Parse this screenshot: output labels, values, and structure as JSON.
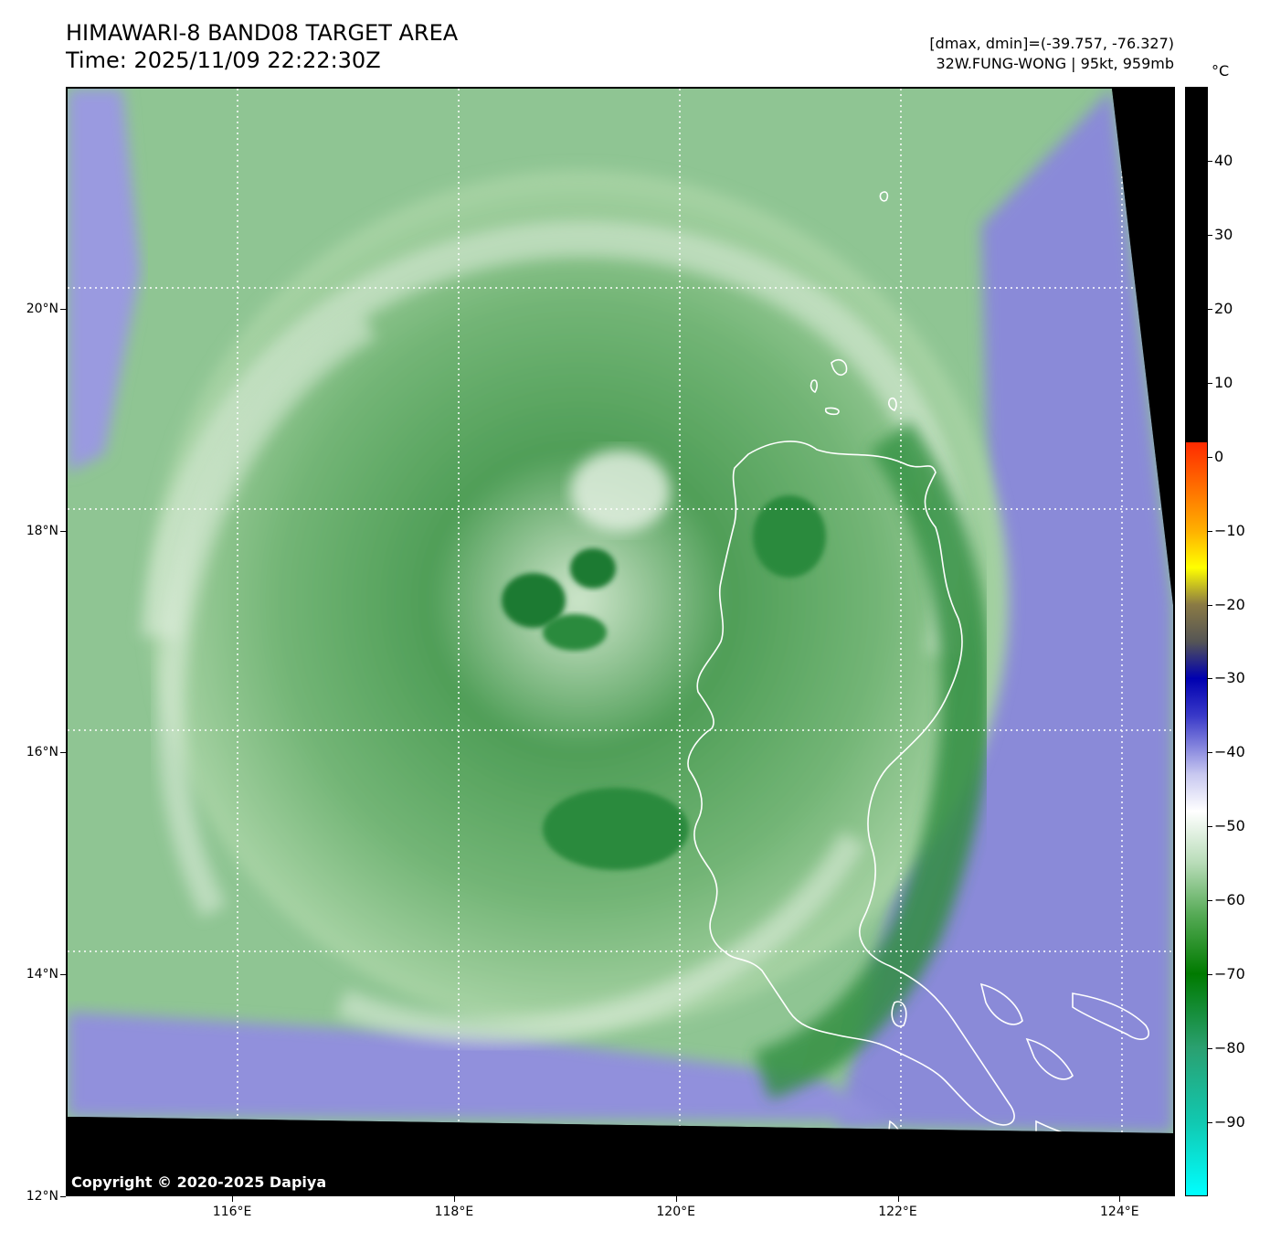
{
  "header": {
    "title": "HIMAWARI-8 BAND08 TARGET AREA",
    "time": "Time: 2025/11/09 22:22:30Z",
    "range": "[dmax, dmin]=(-39.757, -76.327)",
    "storm": "32W.FUNG-WONG | 95kt, 959mb"
  },
  "map": {
    "lon_range": [
      114.5,
      124.5
    ],
    "lat_range": [
      12.0,
      22.0
    ],
    "lat_labels": [
      {
        "lat": 20,
        "text": "20°N"
      },
      {
        "lat": 18,
        "text": "18°N"
      },
      {
        "lat": 16,
        "text": "16°N"
      },
      {
        "lat": 14,
        "text": "14°N"
      },
      {
        "lat": 12,
        "text": "12°N"
      }
    ],
    "lon_labels": [
      {
        "lon": 116,
        "text": "116°E"
      },
      {
        "lon": 118,
        "text": "118°E"
      },
      {
        "lon": 120,
        "text": "120°E"
      },
      {
        "lon": 122,
        "text": "122°E"
      },
      {
        "lon": 124,
        "text": "124°E"
      }
    ],
    "storm_center": {
      "lon": 119.1,
      "lat": 17.0
    },
    "colors": {
      "cold_green": "#1f8a3a",
      "mid_green": "#5aa862",
      "light_green": "#a9d4a6",
      "white": "#f4f8f2",
      "lavender": "#8e8fdc",
      "no_data": "#000000",
      "coastline": "#ffffff"
    }
  },
  "copyright": "Copyright © 2020-2025 Dapiya",
  "colorbar": {
    "unit": "°C",
    "min": -100,
    "max": 50,
    "ticks": [
      {
        "value": 40,
        "text": "40"
      },
      {
        "value": 30,
        "text": "30"
      },
      {
        "value": 20,
        "text": "20"
      },
      {
        "value": 10,
        "text": "10"
      },
      {
        "value": 0,
        "text": "0"
      },
      {
        "value": -10,
        "text": "−10"
      },
      {
        "value": -20,
        "text": "−20"
      },
      {
        "value": -30,
        "text": "−30"
      },
      {
        "value": -40,
        "text": "−40"
      },
      {
        "value": -50,
        "text": "−50"
      },
      {
        "value": -60,
        "text": "−60"
      },
      {
        "value": -70,
        "text": "−70"
      },
      {
        "value": -80,
        "text": "−80"
      },
      {
        "value": -90,
        "text": "−90"
      }
    ]
  }
}
